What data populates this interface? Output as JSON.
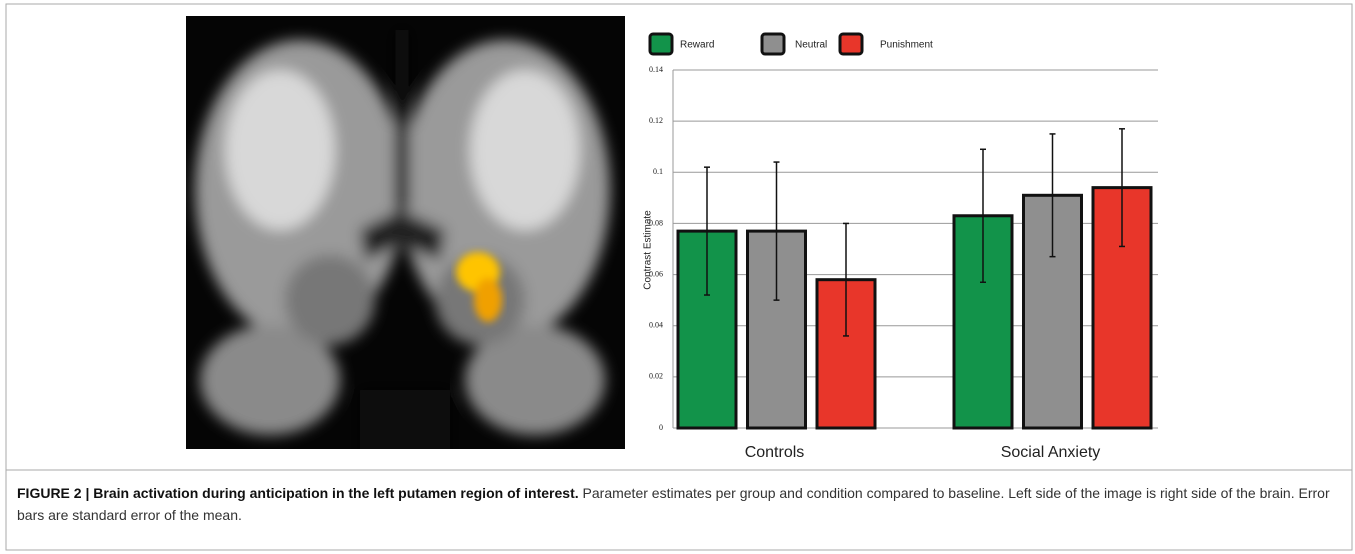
{
  "chart_data": {
    "type": "bar",
    "y_label": "Contrast Estimate",
    "categories": [
      "Controls",
      "Social Anxiety"
    ],
    "series": [
      {
        "name": "Reward",
        "color": "#12934a",
        "values": [
          0.077,
          0.083
        ],
        "errors": [
          0.025,
          0.026
        ]
      },
      {
        "name": "Neutral",
        "color": "#8f8f8f",
        "values": [
          0.077,
          0.091
        ],
        "errors": [
          0.027,
          0.024
        ]
      },
      {
        "name": "Punishment",
        "color": "#e8362a",
        "values": [
          0.058,
          0.094
        ],
        "errors": [
          0.022,
          0.023
        ]
      }
    ],
    "ylim": [
      0,
      0.14
    ],
    "yticks": [
      0,
      0.02,
      0.04,
      0.06,
      0.08,
      0.1,
      0.12,
      0.14
    ],
    "grid": true
  },
  "caption": {
    "title": "FIGURE 2 | Brain activation during anticipation in the left putamen region of interest.",
    "text": "Parameter estimates per group and condition compared to baseline. Left side of the image is right side of the brain. Error bars are standard error of the mean."
  }
}
